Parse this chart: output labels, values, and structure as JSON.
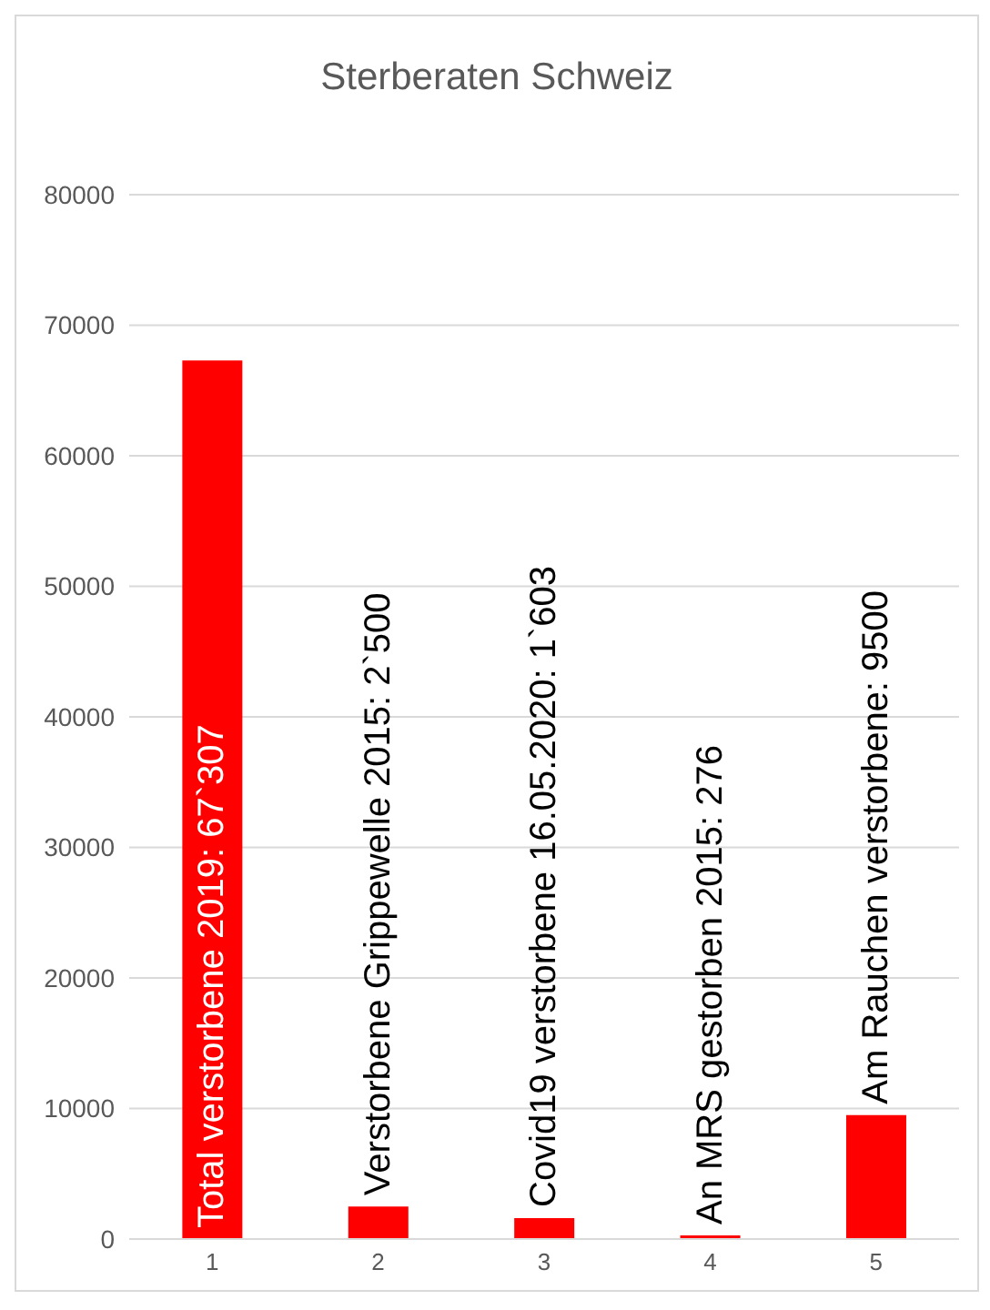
{
  "chart_data": {
    "type": "bar",
    "title": "Sterberaten Schweiz",
    "categories": [
      "1",
      "2",
      "3",
      "4",
      "5"
    ],
    "values": [
      67307,
      2500,
      1603,
      276,
      9500
    ],
    "color": "#ff0000",
    "value_labels": [
      "Total verstorbene 2019: 67`307",
      "Verstorbene Grippewelle 2015: 2`500",
      "Covid19 verstorbene 16.05.2020: 1`603",
      "An MRS gestorben 2015: 276",
      "Am Rauchen verstorbene: 9500"
    ],
    "ylim": [
      0,
      80000
    ],
    "yticks": [
      0,
      10000,
      20000,
      30000,
      40000,
      50000,
      60000,
      70000,
      80000
    ],
    "grid": "y",
    "legend": false
  }
}
